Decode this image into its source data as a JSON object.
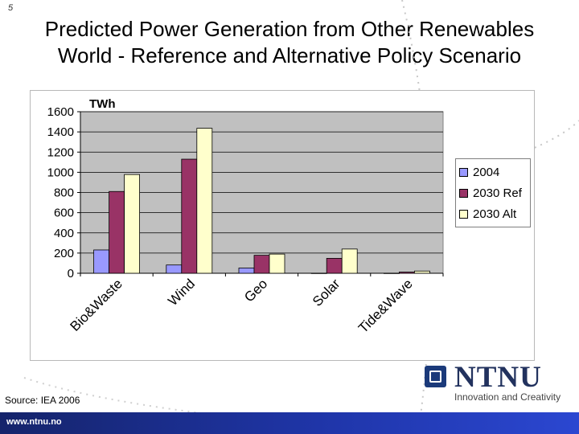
{
  "slide": {
    "page_number": "5",
    "title_line1": "Predicted Power Generation from Other Renewables",
    "title_line2": "World - Reference and Alternative Policy Scenario",
    "source": "Source: IEA 2006",
    "footer_url": "www.ntnu.no"
  },
  "logo": {
    "name": "NTNU",
    "tagline": "Innovation and Creativity"
  },
  "chart_data": {
    "type": "bar",
    "title": "",
    "ylabel": "TWh",
    "xlabel": "",
    "categories": [
      "Bio&Waste",
      "Wind",
      "Geo",
      "Solar",
      "Tide&Wave"
    ],
    "ylim": [
      0,
      1600
    ],
    "yticks": [
      0,
      200,
      400,
      600,
      800,
      1000,
      1200,
      1400,
      1600
    ],
    "grid": true,
    "legend_position": "right",
    "plot_background": "#c0c0c0",
    "series": [
      {
        "name": "2004",
        "color": "#9999ff",
        "values": [
          231,
          82,
          52,
          1,
          1
        ]
      },
      {
        "name": "2030 Ref",
        "color": "#993366",
        "values": [
          810,
          1130,
          178,
          148,
          12
        ]
      },
      {
        "name": "2030 Alt",
        "color": "#ffffcc",
        "values": [
          978,
          1436,
          190,
          240,
          22
        ]
      }
    ]
  }
}
